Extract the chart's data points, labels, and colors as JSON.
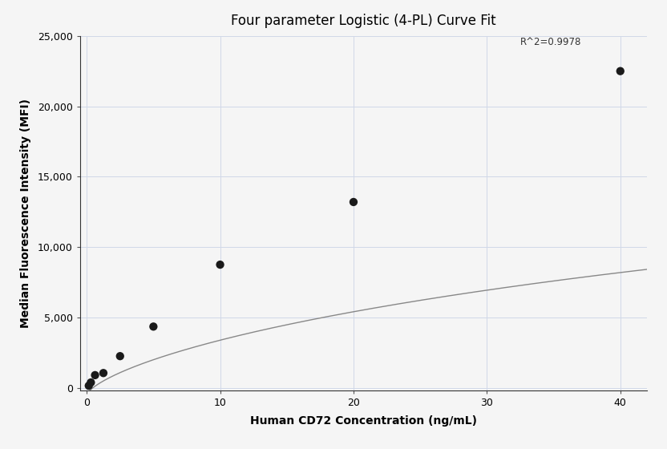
{
  "title": "Four parameter Logistic (4-PL) Curve Fit",
  "xlabel": "Human CD72 Concentration (ng/mL)",
  "ylabel": "Median Fluorescence Intensity (MFI)",
  "scatter_x": [
    0.156,
    0.313,
    0.625,
    1.25,
    2.5,
    5.0,
    10.0,
    20.0,
    40.0
  ],
  "scatter_y": [
    150,
    380,
    900,
    1050,
    2250,
    4350,
    8750,
    13200,
    22500
  ],
  "xlim": [
    -0.5,
    42
  ],
  "ylim": [
    -200,
    25000
  ],
  "xticks": [
    0,
    10,
    20,
    30,
    40
  ],
  "yticks": [
    0,
    5000,
    10000,
    15000,
    20000,
    25000
  ],
  "r_squared": "R^2=0.9978",
  "r2_x": 32.5,
  "r2_y": 24200,
  "dot_color": "#1a1a1a",
  "dot_size": 55,
  "line_color": "#888888",
  "line_width": 1.0,
  "background_color": "#f5f5f5",
  "grid_color": "#d0d8e8",
  "title_fontsize": 12,
  "label_fontsize": 10,
  "tick_fontsize": 9,
  "annotation_fontsize": 8.5
}
